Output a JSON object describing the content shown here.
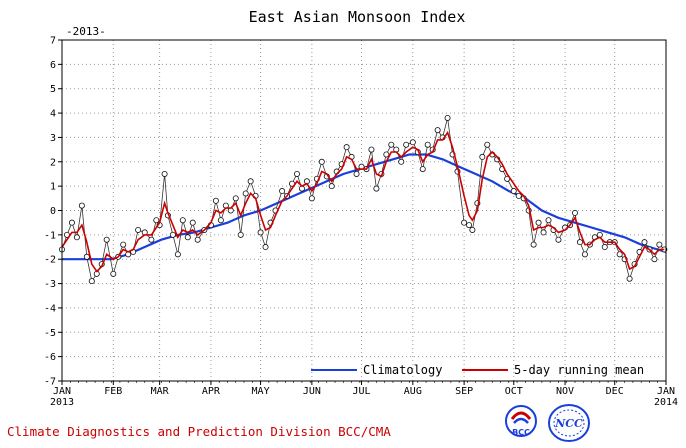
{
  "chart_data": {
    "type": "line",
    "title": "East Asian Monsoon Index",
    "subtitle": "-2013-",
    "xlabel": "",
    "ylabel": "",
    "ylim": [
      -7,
      7
    ],
    "yticks": [
      "-7",
      "-6",
      "-5",
      "-4",
      "-3",
      "-2",
      "-1",
      "0",
      "1",
      "2",
      "3",
      "4",
      "5",
      "6",
      "7"
    ],
    "xlim": [
      0,
      365
    ],
    "xticks": [
      {
        "label": "JAN",
        "sublabel": "2013",
        "day": 0
      },
      {
        "label": "FEB",
        "sublabel": "",
        "day": 31
      },
      {
        "label": "MAR",
        "sublabel": "",
        "day": 59
      },
      {
        "label": "APR",
        "sublabel": "",
        "day": 90
      },
      {
        "label": "MAY",
        "sublabel": "",
        "day": 120
      },
      {
        "label": "JUN",
        "sublabel": "",
        "day": 151
      },
      {
        "label": "JUL",
        "sublabel": "",
        "day": 181
      },
      {
        "label": "AUG",
        "sublabel": "",
        "day": 212
      },
      {
        "label": "SEP",
        "sublabel": "",
        "day": 243
      },
      {
        "label": "OCT",
        "sublabel": "",
        "day": 273
      },
      {
        "label": "NOV",
        "sublabel": "",
        "day": 304
      },
      {
        "label": "DEC",
        "sublabel": "",
        "day": 334
      },
      {
        "label": "JAN",
        "sublabel": "2014",
        "day": 365
      }
    ],
    "grid": true,
    "legend": [
      "Climatology",
      "5-day running mean"
    ],
    "legend_position": "bottom-right",
    "series": [
      {
        "name": "Daily index",
        "style": "black line with open circles",
        "color": "#000000",
        "x": [
          0,
          3,
          6,
          9,
          12,
          15,
          18,
          21,
          24,
          27,
          31,
          34,
          37,
          40,
          43,
          46,
          50,
          54,
          57,
          59,
          62,
          64,
          67,
          70,
          73,
          76,
          79,
          82,
          86,
          90,
          93,
          96,
          99,
          102,
          105,
          108,
          111,
          114,
          117,
          120,
          123,
          126,
          129,
          133,
          136,
          139,
          142,
          145,
          148,
          151,
          154,
          157,
          160,
          163,
          166,
          169,
          172,
          175,
          178,
          181,
          184,
          187,
          190,
          193,
          196,
          199,
          202,
          205,
          208,
          212,
          215,
          218,
          221,
          224,
          227,
          230,
          233,
          236,
          239,
          243,
          246,
          248,
          251,
          254,
          257,
          260,
          263,
          266,
          269,
          273,
          276,
          279,
          282,
          285,
          288,
          291,
          294,
          297,
          300,
          304,
          307,
          310,
          313,
          316,
          319,
          322,
          325,
          328,
          331,
          334,
          337,
          340,
          343,
          346,
          349,
          352,
          355,
          358,
          361,
          364
        ],
        "values": [
          -1.6,
          -1.0,
          -0.5,
          -1.1,
          0.2,
          -1.9,
          -2.9,
          -2.6,
          -2.2,
          -1.2,
          -2.6,
          -1.9,
          -1.4,
          -1.8,
          -1.7,
          -0.8,
          -0.9,
          -1.2,
          -0.4,
          -0.6,
          1.5,
          -0.2,
          -1.0,
          -1.8,
          -0.4,
          -1.1,
          -0.5,
          -1.2,
          -0.8,
          -0.6,
          0.4,
          -0.4,
          0.2,
          0.0,
          0.5,
          -1.0,
          0.7,
          1.2,
          0.6,
          -0.9,
          -1.5,
          -0.5,
          0.0,
          0.8,
          0.6,
          1.1,
          1.5,
          0.9,
          1.2,
          0.5,
          1.3,
          2.0,
          1.4,
          1.0,
          1.6,
          1.9,
          2.6,
          2.2,
          1.5,
          1.8,
          1.7,
          2.5,
          0.9,
          1.5,
          2.3,
          2.7,
          2.5,
          2.0,
          2.7,
          2.8,
          2.4,
          1.7,
          2.7,
          2.5,
          3.3,
          3.0,
          3.8,
          2.3,
          1.6,
          -0.5,
          -0.6,
          -0.8,
          0.3,
          2.2,
          2.7,
          2.3,
          2.1,
          1.7,
          1.3,
          0.8,
          0.6,
          0.5,
          0.0,
          -1.4,
          -0.5,
          -0.9,
          -0.4,
          -0.8,
          -1.2,
          -0.7,
          -0.6,
          -0.1,
          -1.3,
          -1.8,
          -1.4,
          -1.1,
          -1.0,
          -1.5,
          -1.3,
          -1.3,
          -1.8,
          -2.0,
          -2.8,
          -2.2,
          -1.7,
          -1.3,
          -1.6,
          -2.0,
          -1.4,
          -1.6
        ]
      },
      {
        "name": "5-day running mean",
        "style": "red line",
        "color": "#cc0000",
        "x": [
          0,
          3,
          6,
          9,
          12,
          15,
          18,
          21,
          24,
          27,
          31,
          34,
          37,
          40,
          43,
          46,
          50,
          54,
          57,
          59,
          62,
          64,
          67,
          70,
          73,
          76,
          79,
          82,
          86,
          90,
          93,
          96,
          99,
          102,
          105,
          108,
          111,
          114,
          117,
          120,
          123,
          126,
          129,
          133,
          136,
          139,
          142,
          145,
          148,
          151,
          154,
          157,
          160,
          163,
          166,
          169,
          172,
          175,
          178,
          181,
          184,
          187,
          190,
          193,
          196,
          199,
          202,
          205,
          208,
          212,
          215,
          218,
          221,
          224,
          227,
          230,
          233,
          236,
          239,
          243,
          246,
          248,
          251,
          254,
          257,
          260,
          263,
          266,
          269,
          273,
          276,
          279,
          282,
          285,
          288,
          291,
          294,
          297,
          300,
          304,
          307,
          310,
          313,
          316,
          319,
          322,
          325,
          328,
          331,
          334,
          337,
          340,
          343,
          346,
          349,
          352,
          355,
          358,
          361,
          364
        ],
        "values": [
          -1.5,
          -1.2,
          -0.9,
          -0.9,
          -0.6,
          -1.3,
          -2.2,
          -2.5,
          -2.3,
          -1.8,
          -2.0,
          -1.9,
          -1.6,
          -1.7,
          -1.6,
          -1.2,
          -1.0,
          -1.0,
          -0.7,
          -0.5,
          0.3,
          -0.1,
          -0.6,
          -1.1,
          -0.8,
          -0.9,
          -0.8,
          -1.0,
          -0.8,
          -0.5,
          0.0,
          -0.1,
          0.1,
          0.1,
          0.3,
          -0.2,
          0.3,
          0.7,
          0.5,
          -0.2,
          -0.8,
          -0.7,
          -0.2,
          0.4,
          0.6,
          0.9,
          1.2,
          1.0,
          1.1,
          0.8,
          1.1,
          1.6,
          1.5,
          1.2,
          1.5,
          1.7,
          2.2,
          2.1,
          1.7,
          1.7,
          1.7,
          2.1,
          1.5,
          1.4,
          2.0,
          2.4,
          2.4,
          2.2,
          2.4,
          2.6,
          2.5,
          2.0,
          2.3,
          2.4,
          2.9,
          2.9,
          3.2,
          2.6,
          1.8,
          0.6,
          -0.2,
          -0.4,
          0.0,
          1.3,
          2.2,
          2.4,
          2.2,
          1.9,
          1.5,
          1.1,
          0.8,
          0.6,
          0.2,
          -0.8,
          -0.7,
          -0.7,
          -0.6,
          -0.7,
          -0.9,
          -0.8,
          -0.6,
          -0.3,
          -0.9,
          -1.4,
          -1.4,
          -1.2,
          -1.1,
          -1.3,
          -1.3,
          -1.3,
          -1.6,
          -1.8,
          -2.4,
          -2.3,
          -1.9,
          -1.5,
          -1.6,
          -1.8,
          -1.6,
          -1.6
        ]
      },
      {
        "name": "Climatology",
        "style": "blue line",
        "color": "#1a3fdc",
        "x": [
          0,
          10,
          20,
          30,
          40,
          50,
          60,
          70,
          80,
          90,
          100,
          110,
          120,
          130,
          140,
          150,
          160,
          170,
          180,
          190,
          200,
          210,
          220,
          230,
          240,
          250,
          260,
          270,
          280,
          290,
          300,
          310,
          320,
          330,
          340,
          350,
          360,
          365
        ],
        "values": [
          -2.0,
          -2.0,
          -2.0,
          -2.0,
          -1.8,
          -1.5,
          -1.2,
          -1.0,
          -0.9,
          -0.7,
          -0.5,
          -0.2,
          0.0,
          0.3,
          0.6,
          0.9,
          1.2,
          1.5,
          1.7,
          1.9,
          2.1,
          2.3,
          2.3,
          2.1,
          1.8,
          1.5,
          1.2,
          0.8,
          0.5,
          0.0,
          -0.3,
          -0.5,
          -0.7,
          -0.9,
          -1.1,
          -1.4,
          -1.6,
          -1.7
        ]
      }
    ]
  },
  "footer": {
    "credit": "Climate Diagnostics and Prediction Division  BCC/CMA",
    "logo_bcc_text": "BCC",
    "logo_ncc_text": "NCC"
  }
}
